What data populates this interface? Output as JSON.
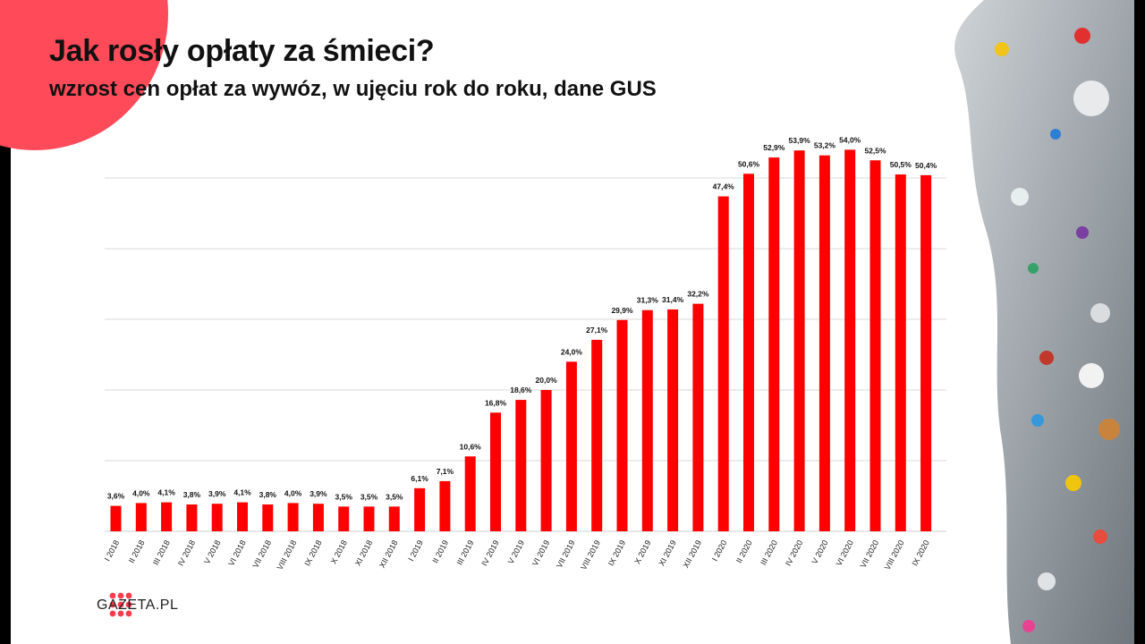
{
  "header": {
    "title": "Jak rosły opłaty za śmieci?",
    "subtitle": "wzrost cen opłat za wywóz, w ujęciu rok do roku, dane GUS"
  },
  "brand": {
    "name": "GAZETA.PL",
    "accent_color": "#ff0000",
    "circle_color": "#ff4a5a"
  },
  "chart_data": {
    "type": "bar",
    "title": "Jak rosły opłaty za śmieci?",
    "subtitle": "wzrost cen opłat za wywóz, w ujęciu rok do roku, dane GUS",
    "categories": [
      "I 2018",
      "II 2018",
      "III 2018",
      "IV 2018",
      "V 2018",
      "VI 2018",
      "VII 2018",
      "VIII 2018",
      "IX 2018",
      "X 2018",
      "XI 2018",
      "XII 2018",
      "I 2019",
      "II 2019",
      "III 2019",
      "IV 2019",
      "V 2019",
      "VI 2019",
      "VII 2019",
      "VIII 2019",
      "IX 2019",
      "X 2019",
      "XI 2019",
      "XII 2019",
      "I 2020",
      "II 2020",
      "III 2020",
      "IV 2020",
      "V 2020",
      "VI 2020",
      "VII 2020",
      "VIII 2020",
      "IX 2020"
    ],
    "values": [
      3.6,
      4.0,
      4.1,
      3.8,
      3.9,
      4.1,
      3.8,
      4.0,
      3.9,
      3.5,
      3.5,
      3.5,
      6.1,
      7.1,
      10.6,
      16.8,
      18.6,
      20.0,
      24.0,
      27.1,
      29.9,
      31.3,
      31.4,
      32.2,
      47.4,
      50.6,
      52.9,
      53.9,
      53.2,
      54.0,
      52.5,
      50.5,
      50.4
    ],
    "labels": [
      "3,6%",
      "4,0%",
      "4,1%",
      "3,8%",
      "3,9%",
      "4,1%",
      "3,8%",
      "4,0%",
      "3,9%",
      "3,5%",
      "3,5%",
      "3,5%",
      "6,1%",
      "7,1%",
      "10,6%",
      "16,8%",
      "18,6%",
      "20,0%",
      "24,0%",
      "27,1%",
      "29,9%",
      "31,3%",
      "31,4%",
      "32,2%",
      "47,4%",
      "50,6%",
      "52,9%",
      "53,9%",
      "53,2%",
      "54,0%",
      "52,5%",
      "50,5%",
      "50,4%"
    ],
    "ylim": [
      0,
      60
    ],
    "gridlines": [
      10,
      20,
      30,
      40,
      50
    ],
    "grid": true,
    "bar_color": "#ff0000",
    "xlabel": "",
    "ylabel": ""
  }
}
